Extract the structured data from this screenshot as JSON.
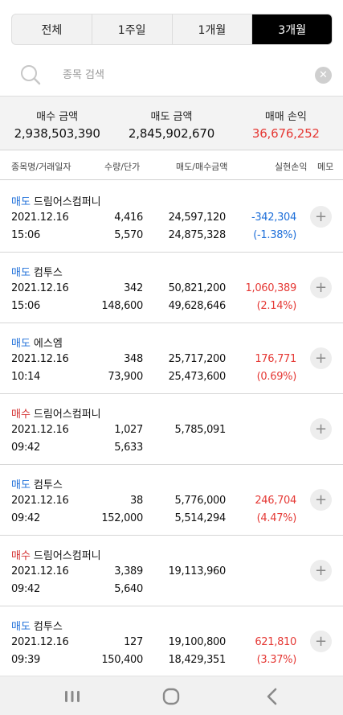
{
  "tabs": [
    {
      "label": "전체"
    },
    {
      "label": "1주일"
    },
    {
      "label": "1개월"
    },
    {
      "label": "3개월"
    }
  ],
  "active_tab": "3개월",
  "search": {
    "placeholder": "종목 검색",
    "value": "",
    "search_icon": "search-icon",
    "clear_icon": "close-icon"
  },
  "summary": {
    "buy_label": "매수 금액",
    "buy_value": "2,938,503,390",
    "sell_label": "매도 금액",
    "sell_value": "2,845,902,670",
    "pnl_label": "매매 손익",
    "pnl_value": "36,676,252",
    "pnl_color": "#e53935"
  },
  "columns": {
    "name_date": "종목명/거래일자",
    "qty_price": "수량/단가",
    "amounts": "매도/매수금액",
    "realized": "실현손익",
    "memo": "메모"
  },
  "colors": {
    "sell": "#1e6fd9",
    "buy": "#d32f2f",
    "profit": "#e53935",
    "loss": "#1e6fd9",
    "active_tab": "#000000"
  },
  "rows": [
    {
      "type": "매도",
      "kind": "sell",
      "name": "드림어스컴퍼니",
      "date": "2021.12.16",
      "time": "15:06",
      "qty": "4,416",
      "price": "5,570",
      "amt1": "24,597,120",
      "amt2": "24,875,328",
      "pnl": "-342,304",
      "pnl_rate": "(-1.38%)",
      "pnl_sign": "loss"
    },
    {
      "type": "매도",
      "kind": "sell",
      "name": "컴투스",
      "date": "2021.12.16",
      "time": "15:06",
      "qty": "342",
      "price": "148,600",
      "amt1": "50,821,200",
      "amt2": "49,628,646",
      "pnl": "1,060,389",
      "pnl_rate": "(2.14%)",
      "pnl_sign": "profit"
    },
    {
      "type": "매도",
      "kind": "sell",
      "name": "에스엠",
      "date": "2021.12.16",
      "time": "10:14",
      "qty": "348",
      "price": "73,900",
      "amt1": "25,717,200",
      "amt2": "25,473,600",
      "pnl": "176,771",
      "pnl_rate": "(0.69%)",
      "pnl_sign": "profit"
    },
    {
      "type": "매수",
      "kind": "buy",
      "name": "드림어스컴퍼니",
      "date": "2021.12.16",
      "time": "09:42",
      "qty": "1,027",
      "price": "5,633",
      "amt1": "5,785,091",
      "amt2": "",
      "pnl": "",
      "pnl_rate": "",
      "pnl_sign": ""
    },
    {
      "type": "매도",
      "kind": "sell",
      "name": "컴투스",
      "date": "2021.12.16",
      "time": "09:42",
      "qty": "38",
      "price": "152,000",
      "amt1": "5,776,000",
      "amt2": "5,514,294",
      "pnl": "246,704",
      "pnl_rate": "(4.47%)",
      "pnl_sign": "profit"
    },
    {
      "type": "매수",
      "kind": "buy",
      "name": "드림어스컴퍼니",
      "date": "2021.12.16",
      "time": "09:42",
      "qty": "3,389",
      "price": "5,640",
      "amt1": "19,113,960",
      "amt2": "",
      "pnl": "",
      "pnl_rate": "",
      "pnl_sign": ""
    },
    {
      "type": "매도",
      "kind": "sell",
      "name": "컴투스",
      "date": "2021.12.16",
      "time": "09:39",
      "qty": "127",
      "price": "150,400",
      "amt1": "19,100,800",
      "amt2": "18,429,351",
      "pnl": "621,810",
      "pnl_rate": "(3.37%)",
      "pnl_sign": "profit"
    }
  ],
  "row_action_icon": "plus-icon",
  "navbar": {
    "recent_icon": "recent-apps-icon",
    "home_icon": "home-icon",
    "back_icon": "back-icon"
  }
}
